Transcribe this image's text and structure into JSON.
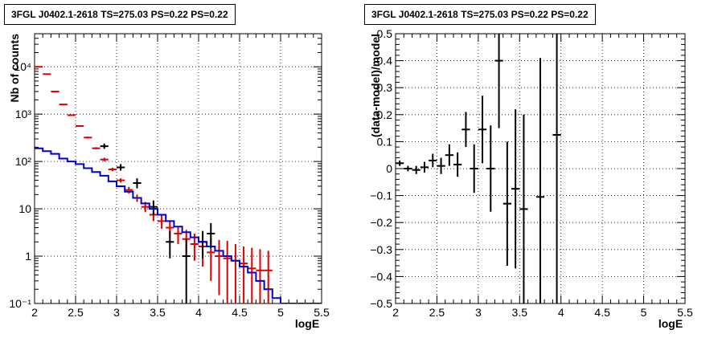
{
  "chart_data": [
    {
      "type": "line",
      "title": "3FGL J0402.1-2618 TS=275.03 PS=0.22 PS=0.22",
      "xlabel": "logE",
      "ylabel": "Nb of counts",
      "xlim": [
        2,
        5.5
      ],
      "ylim": [
        0.1,
        50000
      ],
      "yscale": "log",
      "grid": true,
      "xticks": [
        "2",
        "2.5",
        "3",
        "3.5",
        "4",
        "4.5",
        "5",
        "5.5"
      ],
      "yticks": [
        {
          "value": 0.1,
          "label": "10⁻¹"
        },
        {
          "value": 1,
          "label": "1"
        },
        {
          "value": 10,
          "label": "10"
        },
        {
          "value": 100,
          "label": "10²"
        },
        {
          "value": 1000,
          "label": "10³"
        },
        {
          "value": 10000,
          "label": "10⁴"
        }
      ],
      "series": [
        {
          "color": "#dd0000",
          "style": "errorbar",
          "x": [
            2.05,
            2.15,
            2.25,
            2.35,
            2.45,
            2.55,
            2.65,
            2.75,
            2.85,
            2.95,
            3.05,
            3.15,
            3.25,
            3.35,
            3.45,
            3.55,
            3.65,
            3.75,
            3.85,
            3.95,
            4.05,
            4.15,
            4.25,
            4.35,
            4.45,
            4.55,
            4.65,
            4.75,
            4.85
          ],
          "y": [
            10000,
            7000,
            3000,
            1600,
            950,
            560,
            320,
            190,
            110,
            68,
            40,
            25,
            17,
            11,
            7.5,
            5.5,
            4,
            3,
            2.3,
            1.8,
            1.6,
            1.2,
            1.0,
            0.9,
            0.8,
            0.7,
            0.55,
            0.5,
            0.5
          ],
          "ylow": [
            9800,
            6850,
            2900,
            1550,
            920,
            540,
            305,
            180,
            100,
            62,
            36,
            21,
            14,
            8.5,
            5.5,
            3.8,
            2.6,
            1.8,
            1.2,
            0.8,
            0.6,
            0.3,
            0.15,
            0.1,
            0.1,
            0.1,
            0.1,
            0.1,
            0.1
          ],
          "yhigh": [
            10200,
            7150,
            3100,
            1650,
            980,
            580,
            335,
            200,
            120,
            74,
            44,
            29,
            20,
            14,
            9.5,
            7.5,
            5.5,
            4.3,
            3.6,
            3.0,
            2.8,
            2.4,
            2.2,
            2.1,
            1.8,
            1.6,
            1.5,
            1.4,
            1.3
          ]
        },
        {
          "color": "#000000",
          "style": "errorbar",
          "x": [
            2.85,
            3.05,
            3.25,
            3.45,
            3.65,
            3.85,
            4.05,
            4.15
          ],
          "y": [
            210,
            75,
            35,
            11,
            2,
            1,
            2,
            3
          ],
          "ylow": [
            185,
            64,
            27,
            7.5,
            0.9,
            0.1,
            0.9,
            1.5
          ],
          "yhigh": [
            240,
            88,
            44,
            15,
            3.4,
            2.3,
            3.4,
            5
          ]
        },
        {
          "color": "#0000cc",
          "style": "step",
          "edges": [
            2.0,
            2.1,
            2.2,
            2.3,
            2.4,
            2.5,
            2.6,
            2.7,
            2.8,
            2.9,
            3.0,
            3.1,
            3.2,
            3.3,
            3.4,
            3.5,
            3.6,
            3.7,
            3.8,
            3.9,
            4.0,
            4.1,
            4.2,
            4.3,
            4.4,
            4.5,
            4.6,
            4.7,
            4.8,
            4.9,
            5.0,
            5.1,
            5.2,
            5.3,
            5.4,
            5.5
          ],
          "values": [
            190,
            165,
            145,
            115,
            100,
            88,
            72,
            60,
            50,
            38,
            30,
            23,
            17,
            13,
            10,
            7.5,
            5.5,
            4.2,
            3.2,
            2.5,
            2.0,
            1.6,
            1.3,
            1.0,
            0.8,
            0.6,
            0.45,
            0.3,
            0.2,
            0.13,
            0.1,
            0.1,
            0.1,
            0.1,
            0.1
          ]
        }
      ]
    },
    {
      "type": "scatter",
      "title": "3FGL J0402.1-2618 TS=275.03 PS=0.22 PS=0.22",
      "xlabel": "logE",
      "ylabel": "(data-model)/model",
      "xlim": [
        2,
        5.5
      ],
      "ylim": [
        -0.5,
        0.5
      ],
      "grid": true,
      "xticks": [
        "2",
        "2.5",
        "3",
        "3.5",
        "4",
        "4.5",
        "5",
        "5.5"
      ],
      "yticks": [
        "−0.5",
        "−0.4",
        "−0.3",
        "−0.2",
        "−0.1",
        "0",
        "0.1",
        "0.2",
        "0.3",
        "0.4",
        "0.5"
      ],
      "ytick_values": [
        -0.5,
        -0.4,
        -0.3,
        -0.2,
        -0.1,
        0,
        0.1,
        0.2,
        0.3,
        0.4,
        0.5
      ],
      "series": [
        {
          "color": "#000000",
          "style": "errorbar",
          "x": [
            2.05,
            2.15,
            2.25,
            2.35,
            2.45,
            2.55,
            2.65,
            2.75,
            2.85,
            2.95,
            3.05,
            3.15,
            3.25,
            3.35,
            3.45,
            3.55,
            3.75,
            3.95
          ],
          "y": [
            0.02,
            0.0,
            -0.005,
            0.005,
            0.03,
            0.01,
            0.05,
            0.015,
            0.145,
            0.0,
            0.145,
            0.0,
            0.4,
            -0.13,
            -0.075,
            -0.15,
            -0.105,
            0.125
          ],
          "ylow": [
            0.01,
            -0.01,
            -0.02,
            -0.015,
            0.005,
            -0.02,
            0.01,
            -0.03,
            0.08,
            -0.09,
            0.02,
            -0.16,
            0.15,
            -0.36,
            -0.37,
            -0.5,
            -0.5,
            -0.5
          ],
          "yhigh": [
            0.03,
            0.01,
            0.01,
            0.025,
            0.055,
            0.04,
            0.09,
            0.06,
            0.21,
            0.09,
            0.27,
            0.16,
            0.5,
            0.1,
            0.22,
            0.2,
            0.41,
            0.5
          ]
        }
      ]
    }
  ]
}
